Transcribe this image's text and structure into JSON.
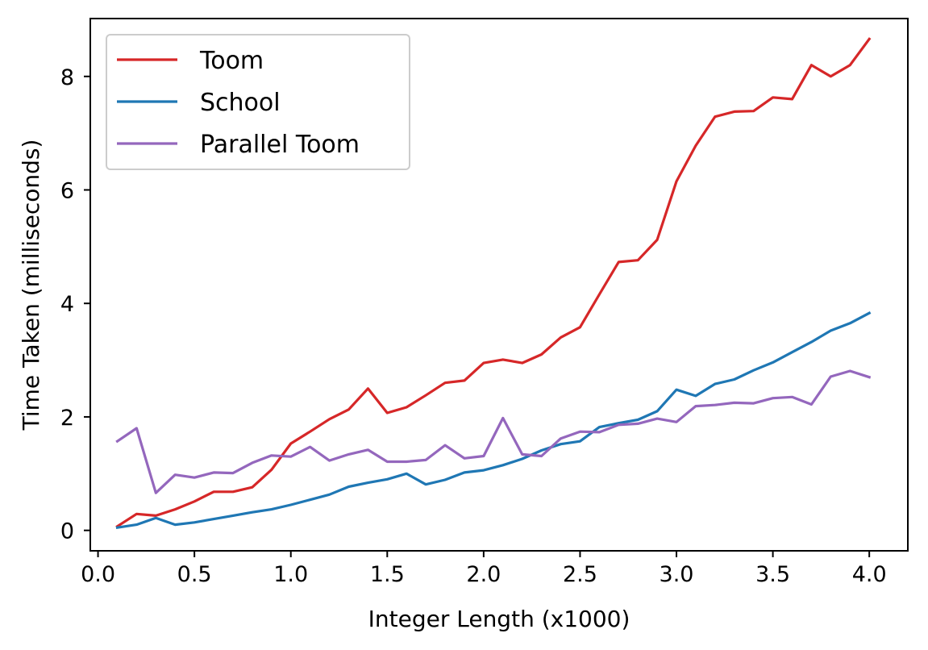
{
  "chart_data": {
    "type": "line",
    "xlabel": "Integer Length (x1000)",
    "ylabel": "Time Taken (milliseconds)",
    "xlim": [
      -0.04,
      4.2
    ],
    "ylim": [
      -0.36,
      9.02
    ],
    "xticks": [
      {
        "value": 0.0,
        "label": "0.0"
      },
      {
        "value": 0.5,
        "label": "0.5"
      },
      {
        "value": 1.0,
        "label": "1.0"
      },
      {
        "value": 1.5,
        "label": "1.5"
      },
      {
        "value": 2.0,
        "label": "2.0"
      },
      {
        "value": 2.5,
        "label": "2.5"
      },
      {
        "value": 3.0,
        "label": "3.0"
      },
      {
        "value": 3.5,
        "label": "3.5"
      },
      {
        "value": 4.0,
        "label": "4.0"
      }
    ],
    "yticks": [
      {
        "value": 0,
        "label": "0"
      },
      {
        "value": 2,
        "label": "2"
      },
      {
        "value": 4,
        "label": "4"
      },
      {
        "value": 6,
        "label": "6"
      },
      {
        "value": 8,
        "label": "8"
      }
    ],
    "grid": false,
    "legend_position": "top-left",
    "x": [
      0.1,
      0.2,
      0.3,
      0.4,
      0.5,
      0.6,
      0.7,
      0.8,
      0.9,
      1.0,
      1.1,
      1.2,
      1.3,
      1.4,
      1.5,
      1.6,
      1.7,
      1.8,
      1.9,
      2.0,
      2.1,
      2.2,
      2.3,
      2.4,
      2.5,
      2.6,
      2.7,
      2.8,
      2.9,
      3.0,
      3.1,
      3.2,
      3.3,
      3.4,
      3.5,
      3.6,
      3.7,
      3.8,
      3.9,
      4.0
    ],
    "series": [
      {
        "name": "Toom",
        "color": "#d62728",
        "values": [
          0.07,
          0.29,
          0.26,
          0.37,
          0.51,
          0.68,
          0.68,
          0.76,
          1.07,
          1.53,
          1.74,
          1.96,
          2.13,
          2.5,
          2.07,
          2.17,
          2.38,
          2.6,
          2.64,
          2.95,
          3.01,
          2.95,
          3.1,
          3.4,
          3.58,
          4.16,
          4.73,
          4.76,
          5.12,
          6.15,
          6.78,
          7.29,
          7.38,
          7.39,
          7.63,
          7.6,
          8.2,
          8.0,
          8.2,
          8.66
        ]
      },
      {
        "name": "School",
        "color": "#1f77b4",
        "values": [
          0.05,
          0.1,
          0.22,
          0.1,
          0.14,
          0.2,
          0.26,
          0.32,
          0.37,
          0.45,
          0.54,
          0.63,
          0.77,
          0.84,
          0.9,
          1.0,
          0.81,
          0.89,
          1.02,
          1.06,
          1.15,
          1.26,
          1.41,
          1.52,
          1.57,
          1.82,
          1.89,
          1.95,
          2.1,
          2.48,
          2.37,
          2.58,
          2.66,
          2.82,
          2.96,
          3.14,
          3.32,
          3.52,
          3.65,
          3.83
        ]
      },
      {
        "name": "Parallel Toom",
        "color": "#9467bd",
        "values": [
          1.57,
          1.8,
          0.66,
          0.98,
          0.93,
          1.02,
          1.01,
          1.19,
          1.32,
          1.3,
          1.47,
          1.23,
          1.34,
          1.42,
          1.21,
          1.21,
          1.24,
          1.5,
          1.27,
          1.31,
          1.98,
          1.34,
          1.31,
          1.62,
          1.74,
          1.73,
          1.86,
          1.88,
          1.97,
          1.91,
          2.19,
          2.21,
          2.25,
          2.24,
          2.33,
          2.35,
          2.22,
          2.71,
          2.81,
          2.7
        ]
      }
    ]
  }
}
